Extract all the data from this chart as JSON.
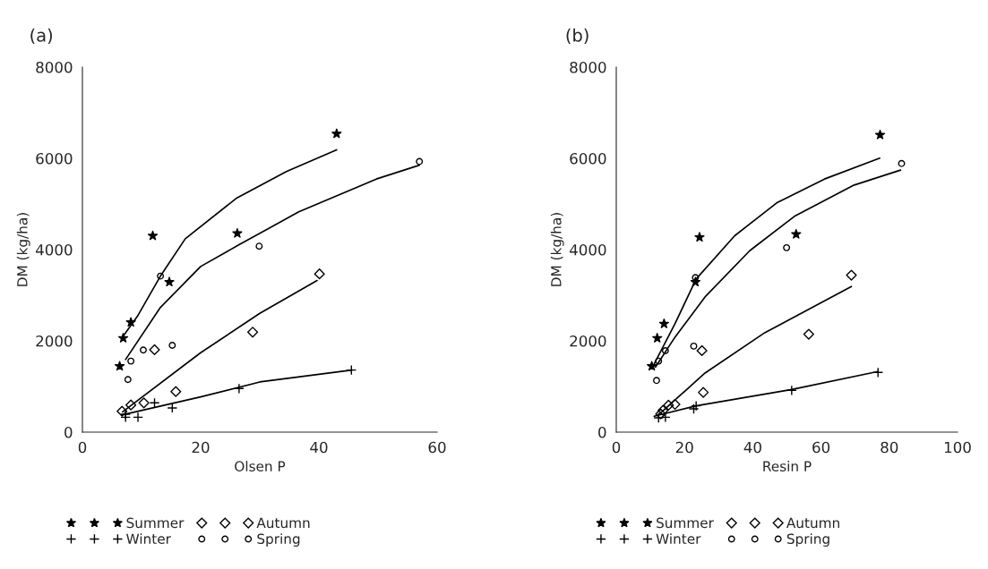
{
  "chart_data": [
    {
      "type": "scatter",
      "title": "(a)",
      "xlabel": "Olsen P",
      "ylabel": "DM (kg/ha)",
      "xlim": [
        0,
        60
      ],
      "xticks": [
        0,
        20,
        40,
        60
      ],
      "ylim": [
        0,
        8000
      ],
      "yticks": [
        0,
        2000,
        4000,
        6000,
        8000
      ],
      "legend": "bottom",
      "grid": false,
      "series": [
        {
          "name": "Summer",
          "color": "#000000",
          "marker": "star",
          "x": [
            6.3,
            6.9,
            8.2,
            11.9,
            14.7,
            26.2,
            43.0
          ],
          "values": [
            1445,
            2060,
            2407,
            4304,
            3290,
            4356,
            6540
          ]
        },
        {
          "name": "Winter",
          "color": "#000000",
          "marker": "cross",
          "x": [
            7.3,
            7.3,
            9.4,
            12.2,
            15.2,
            26.5,
            45.5
          ],
          "values": [
            327,
            393,
            327,
            641,
            530,
            955,
            1360
          ]
        },
        {
          "name": "Autumn",
          "color": "#000000",
          "marker": "diamond",
          "x": [
            6.7,
            8.2,
            10.4,
            12.2,
            15.8,
            28.8,
            40.1
          ],
          "values": [
            458,
            595,
            641,
            1805,
            889,
            2191,
            3466
          ]
        },
        {
          "name": "Spring",
          "color": "#000000",
          "marker": "circle",
          "x": [
            7.7,
            8.2,
            10.3,
            13.2,
            15.2,
            29.9,
            57.0
          ],
          "values": [
            1151,
            1557,
            1799,
            3420,
            1903,
            4075,
            5930
          ]
        },
        {
          "type": "line",
          "color": "#000000",
          "marker": "none",
          "x": [
            6.6,
            9.3,
            13.2,
            17.4,
            26,
            34.5,
            43
          ],
          "values": [
            2047,
            2538,
            3420,
            4238,
            5121,
            5710,
            6187
          ]
        },
        {
          "type": "line",
          "color": "#000000",
          "marker": "none",
          "x": [
            6.8,
            20,
            30,
            45.6
          ],
          "values": [
            379,
            772,
            1099,
            1360
          ]
        },
        {
          "type": "line",
          "color": "#000000",
          "marker": "none",
          "x": [
            6.8,
            20,
            30,
            39.7
          ],
          "values": [
            445,
            1740,
            2603,
            3322
          ]
        },
        {
          "type": "line",
          "color": "#000000",
          "marker": "none",
          "x": [
            7.3,
            13.2,
            20,
            26.5,
            36.6,
            49.7,
            57
          ],
          "values": [
            1590,
            2734,
            3630,
            4107,
            4827,
            5546,
            5850
          ]
        }
      ]
    },
    {
      "type": "scatter",
      "title": "(b)",
      "xlabel": "Resin P",
      "ylabel": "DM (kg/ha)",
      "xlim": [
        0,
        100
      ],
      "xticks": [
        0,
        20,
        40,
        60,
        80,
        100
      ],
      "ylim": [
        0,
        8000
      ],
      "yticks": [
        0,
        2000,
        4000,
        6000,
        8000
      ],
      "legend": "bottom",
      "grid": false,
      "series": [
        {
          "name": "Summer",
          "color": "#000000",
          "marker": "star",
          "x": [
            10.4,
            12.0,
            14.0,
            24.4,
            23.2,
            52.7,
            77.3
          ],
          "values": [
            1445,
            2060,
            2374,
            4271,
            3290,
            4336,
            6514
          ]
        },
        {
          "name": "Winter",
          "color": "#000000",
          "marker": "cross",
          "x": [
            12.4,
            14.4,
            22.7,
            23.4,
            51.4,
            76.7
          ],
          "values": [
            314,
            327,
            510,
            575,
            916,
            1308
          ]
        },
        {
          "name": "Autumn",
          "color": "#000000",
          "marker": "diamond",
          "x": [
            13.0,
            13.7,
            15.3,
            17.2,
            25.1,
            25.5,
            56.4,
            68.9
          ],
          "values": [
            399,
            477,
            589,
            608,
            1785,
            870,
            2145,
            3440
          ]
        },
        {
          "name": "Spring",
          "color": "#000000",
          "marker": "circle",
          "x": [
            11.8,
            12.4,
            14.4,
            22.7,
            23.2,
            49.9,
            83.6
          ],
          "values": [
            1131,
            1557,
            1785,
            1884,
            3388,
            4042,
            5886
          ]
        },
        {
          "type": "line",
          "color": "#000000",
          "marker": "none",
          "x": [
            11.1,
            17.2,
            23.4,
            34.7,
            47,
            61,
            77.2
          ],
          "values": [
            1491,
            2374,
            3355,
            4304,
            5023,
            5546,
            6004
          ]
        },
        {
          "type": "line",
          "color": "#000000",
          "marker": "none",
          "x": [
            11.1,
            23.4,
            51.4,
            76.7
          ],
          "values": [
            347,
            575,
            935,
            1328
          ]
        },
        {
          "type": "line",
          "color": "#000000",
          "marker": "none",
          "x": [
            12.4,
            26,
            43.5,
            68.9
          ],
          "values": [
            379,
            1295,
            2178,
            3192
          ]
        },
        {
          "type": "line",
          "color": "#000000",
          "marker": "none",
          "x": [
            11.5,
            17.2,
            26,
            39.1,
            52.2,
            69.7,
            83.3
          ],
          "values": [
            1426,
            2080,
            2963,
            3976,
            4729,
            5415,
            5742
          ]
        }
      ]
    }
  ]
}
